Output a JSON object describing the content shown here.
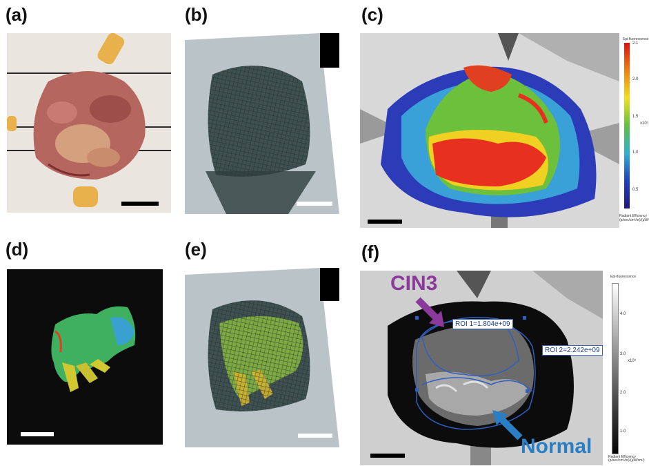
{
  "panels": {
    "a": {
      "label": "(a)"
    },
    "b": {
      "label": "(b)"
    },
    "c": {
      "label": "(c)"
    },
    "d": {
      "label": "(d)"
    },
    "e": {
      "label": "(e)"
    },
    "f": {
      "label": "(f)"
    }
  },
  "colorbar_c": {
    "title": "Epi-fluorescence",
    "ticks": [
      "2.1",
      "2.0",
      "1.5",
      "1.0",
      "0.5"
    ],
    "exponent": "x10⁹",
    "units": "Radiant Efficiency (p/sec/cm²/sr)/(µW/cm²)"
  },
  "colorbar_f": {
    "title": "Epi-fluorescence",
    "ticks": [
      "4.0",
      "3.0",
      "2.0",
      "1.0"
    ],
    "exponent": "x10⁹",
    "units": "Radiant Efficiency (p/sec/cm²/sr)/(µW/cm²)"
  },
  "annotations": {
    "cin3": "CIN3",
    "normal": "Normal",
    "roi1": "ROI 1=1.804e+09",
    "roi2": "ROI 2=2.242e+09"
  },
  "colors": {
    "cin3": "#8b3a9c",
    "normal": "#2a7fc4",
    "roi_outline": "#2f5fc0"
  }
}
